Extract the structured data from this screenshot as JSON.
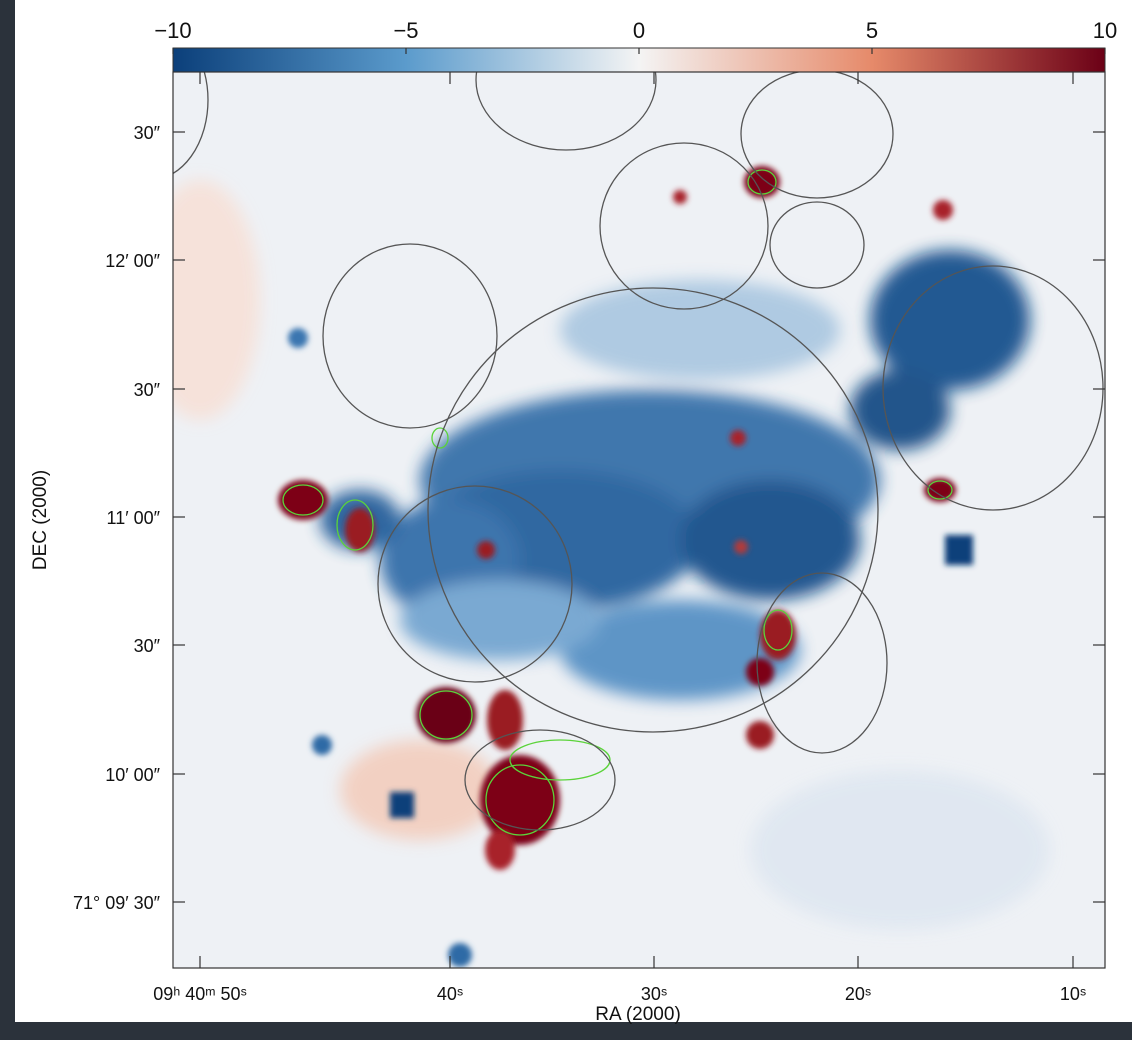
{
  "figure": {
    "colorbar": {
      "range": [
        -10,
        10
      ],
      "ticks": [
        {
          "value": -10,
          "label": "−10"
        },
        {
          "value": -5,
          "label": "−5"
        },
        {
          "value": 0,
          "label": "0"
        },
        {
          "value": 5,
          "label": "5"
        },
        {
          "value": 10,
          "label": "10"
        }
      ]
    },
    "x_axis": {
      "title": "RA (2000)",
      "tick_labels": [
        "09ʰ 40ᵐ 50ˢ",
        "40ˢ",
        "30ˢ",
        "20ˢ",
        "10ˢ"
      ]
    },
    "y_axis": {
      "title": "DEC (2000)",
      "tick_labels": [
        "30″",
        "12′ 00″",
        "30″",
        "11′ 00″",
        "30″",
        "10′ 00″",
        "71° 09′ 30″"
      ]
    }
  }
}
